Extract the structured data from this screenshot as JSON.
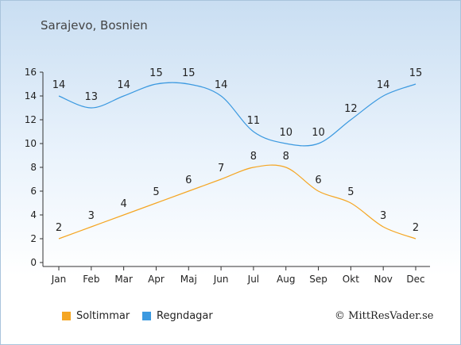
{
  "location": "Sarajevo, Bosnien",
  "copyright": "© MittResVader.se",
  "chart_data": {
    "type": "line",
    "categories": [
      "Jan",
      "Feb",
      "Mar",
      "Apr",
      "Maj",
      "Jun",
      "Jul",
      "Aug",
      "Sep",
      "Okt",
      "Nov",
      "Dec"
    ],
    "series": [
      {
        "name": "Soltimmar",
        "color": "#f5a623",
        "values": [
          2,
          3,
          4,
          5,
          6,
          7,
          8,
          8,
          6,
          5,
          3,
          2
        ]
      },
      {
        "name": "Regndagar",
        "color": "#3b99e0",
        "values": [
          14,
          13,
          14,
          15,
          15,
          14,
          11,
          10,
          10,
          12,
          14,
          15
        ]
      }
    ],
    "ylim": [
      0,
      16
    ],
    "yticks": [
      "0",
      "2",
      "4",
      "6",
      "8",
      "10",
      "12",
      "14",
      "16"
    ],
    "grid": false,
    "legend_position": "bottom-left"
  }
}
